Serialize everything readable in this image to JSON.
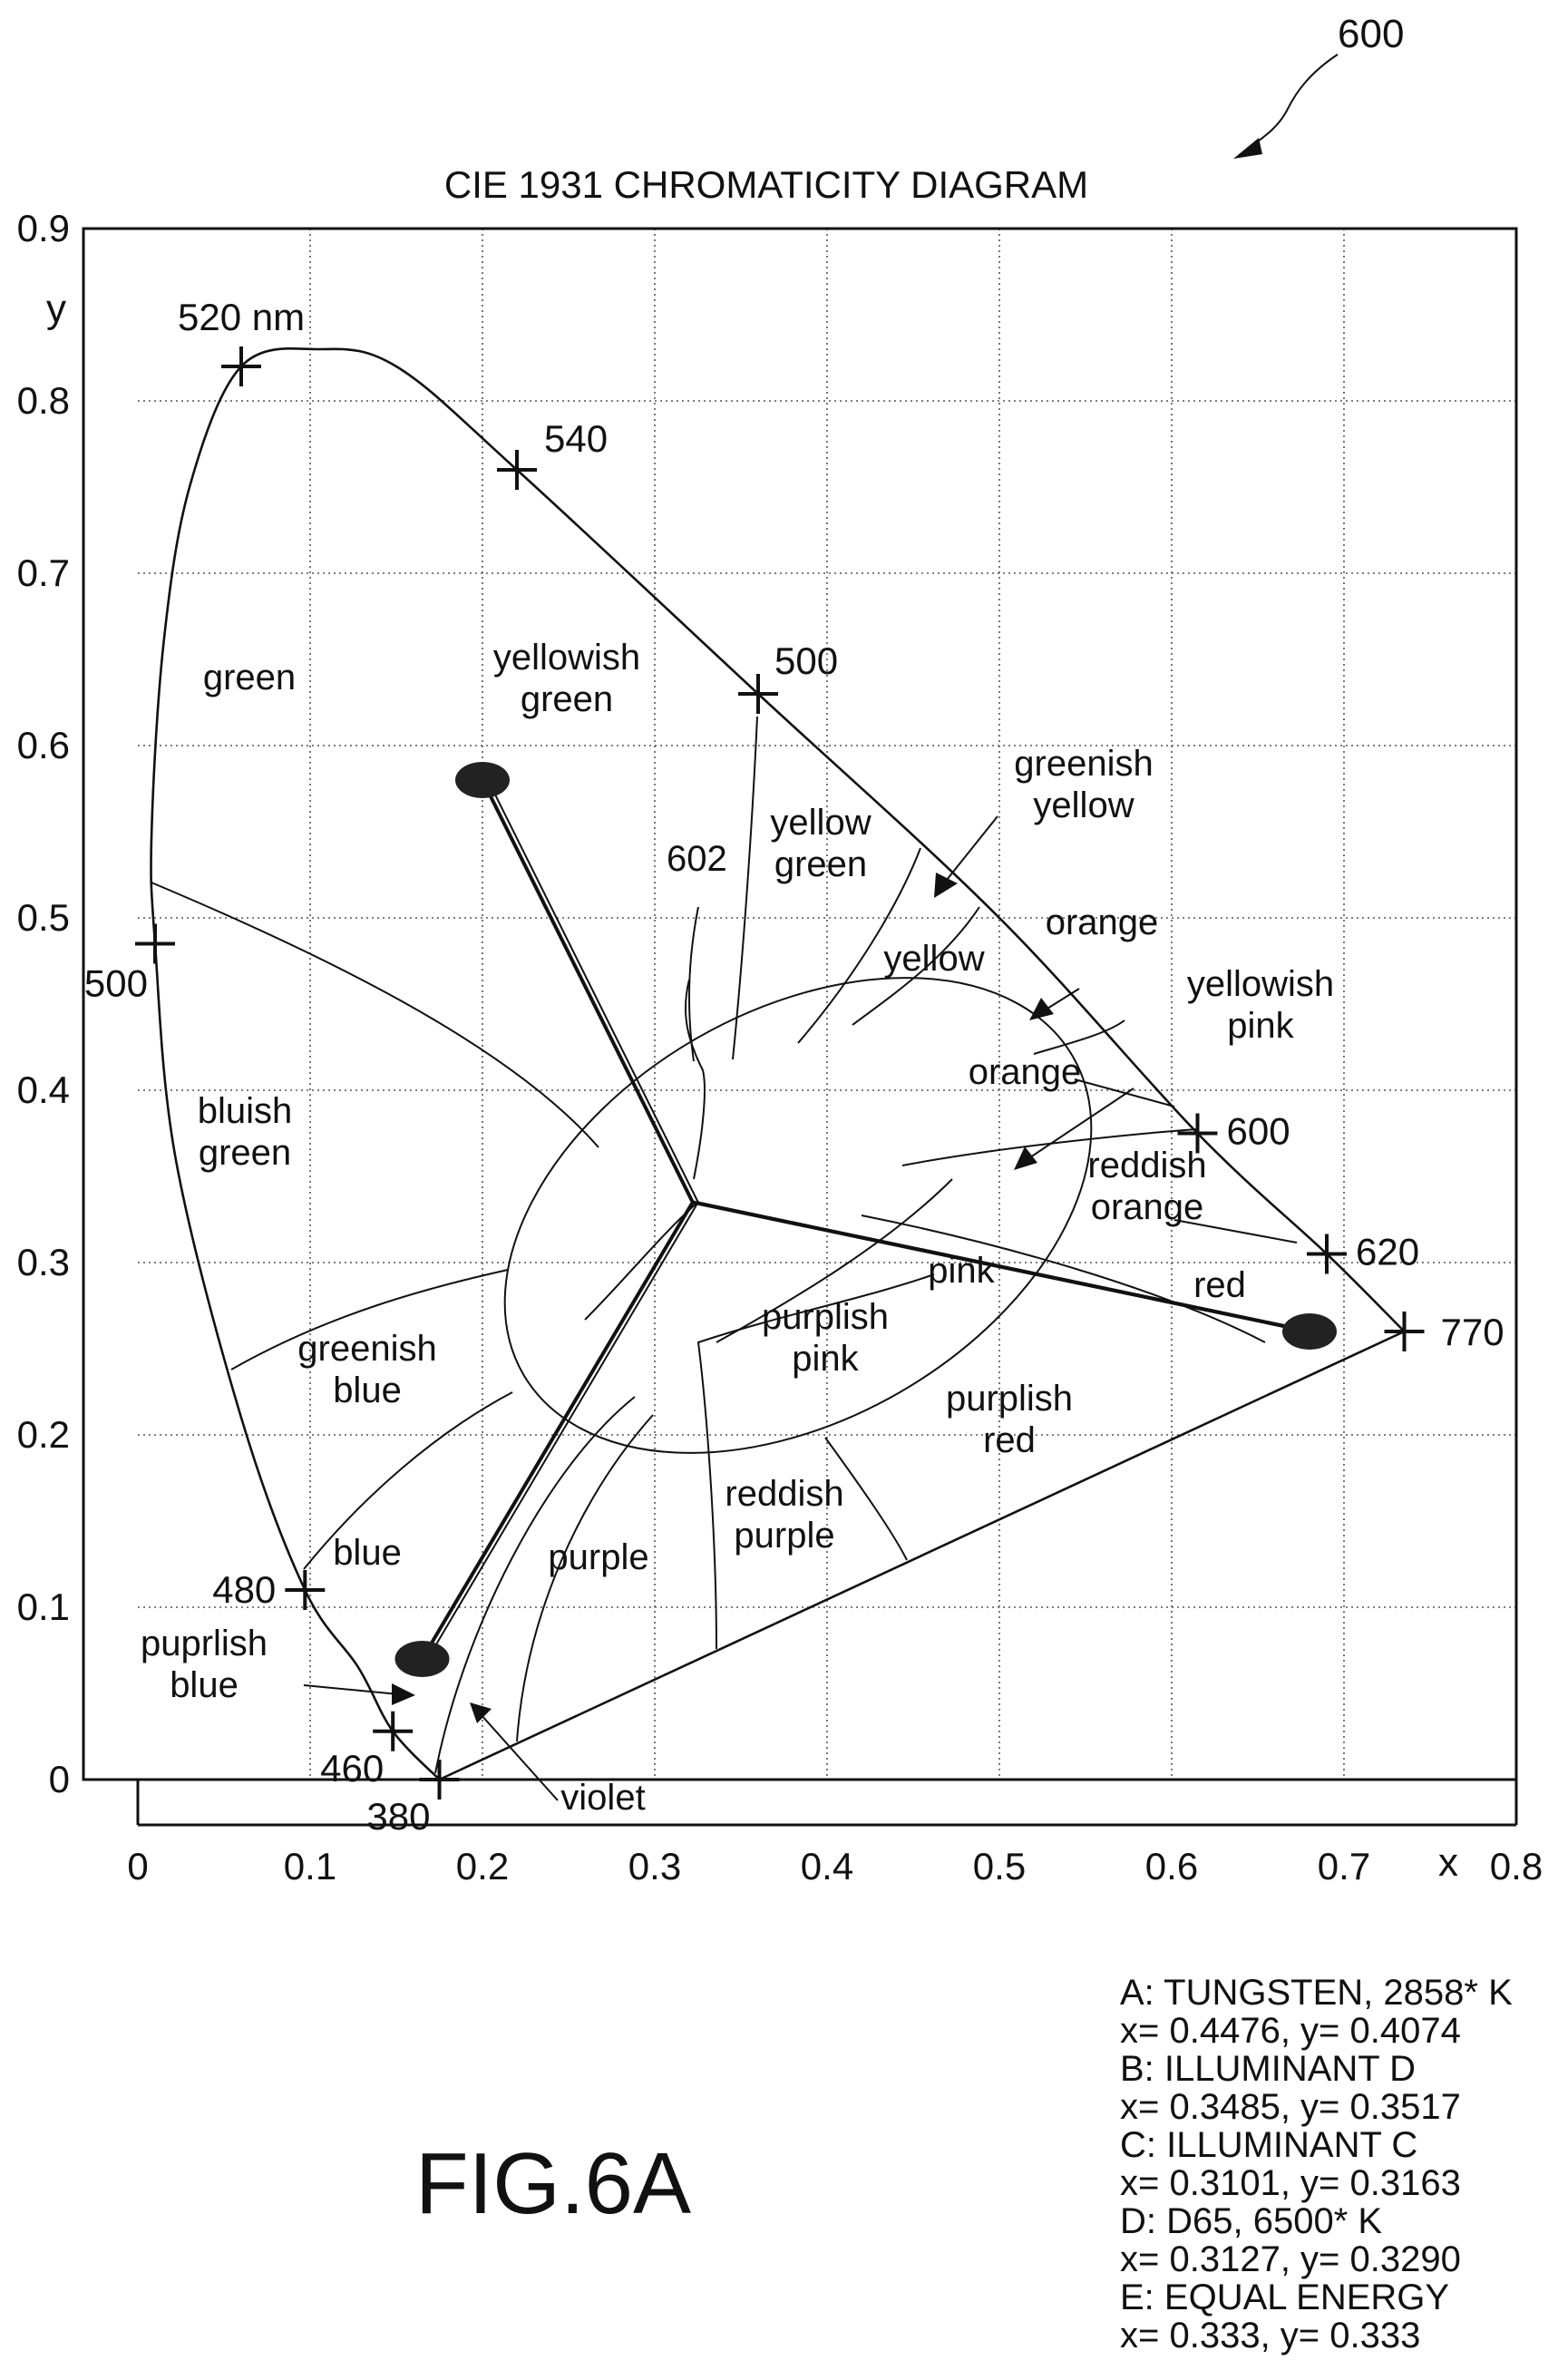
{
  "figure_ref": "600",
  "fig_label": "FIG.6A",
  "chart_data": {
    "type": "diagram",
    "title": "CIE 1931 CHROMATICITY DIAGRAM",
    "xlabel": "x",
    "ylabel": "y",
    "xlim": [
      0,
      0.8
    ],
    "ylim": [
      0,
      0.9
    ],
    "grid": true,
    "x_ticks": [
      "0",
      "0.1",
      "0.2",
      "0.3",
      "0.4",
      "0.5",
      "0.6",
      "0.7",
      "0.8"
    ],
    "y_ticks": [
      "0",
      "0.1",
      "0.2",
      "0.3",
      "0.4",
      "0.5",
      "0.6",
      "0.7",
      "0.8",
      "0.9"
    ],
    "spectral_locus": [
      [
        0.175,
        0.0
      ],
      [
        0.148,
        0.028
      ],
      [
        0.128,
        0.065
      ],
      [
        0.097,
        0.11
      ],
      [
        0.06,
        0.21
      ],
      [
        0.022,
        0.36
      ],
      [
        0.01,
        0.485
      ],
      [
        0.008,
        0.55
      ],
      [
        0.015,
        0.66
      ],
      [
        0.03,
        0.75
      ],
      [
        0.06,
        0.82
      ],
      [
        0.105,
        0.83
      ],
      [
        0.15,
        0.82
      ],
      [
        0.22,
        0.76
      ],
      [
        0.36,
        0.63
      ],
      [
        0.5,
        0.5
      ],
      [
        0.615,
        0.375
      ],
      [
        0.69,
        0.305
      ],
      [
        0.735,
        0.26
      ]
    ],
    "purple_line": [
      [
        0.175,
        0.0
      ],
      [
        0.735,
        0.26
      ]
    ],
    "wavelength_marks": [
      {
        "label": "520 nm",
        "x": 0.06,
        "y": 0.82
      },
      {
        "label": "540",
        "x": 0.22,
        "y": 0.76
      },
      {
        "label": "500",
        "x": 0.36,
        "y": 0.63
      },
      {
        "label": "500",
        "x": 0.01,
        "y": 0.485
      },
      {
        "label": "600",
        "x": 0.615,
        "y": 0.375
      },
      {
        "label": "620",
        "x": 0.69,
        "y": 0.305
      },
      {
        "label": "770",
        "x": 0.735,
        "y": 0.26
      },
      {
        "label": "480",
        "x": 0.097,
        "y": 0.11
      },
      {
        "label": "460",
        "x": 0.148,
        "y": 0.028
      },
      {
        "label": "380",
        "x": 0.175,
        "y": 0.0
      }
    ],
    "gamut_points": [
      {
        "x": 0.2,
        "y": 0.58
      },
      {
        "x": 0.68,
        "y": 0.26
      },
      {
        "x": 0.165,
        "y": 0.07
      }
    ],
    "white_point": {
      "x": 0.322,
      "y": 0.335
    },
    "regions": [
      {
        "lines": [
          "green"
        ]
      },
      {
        "lines": [
          "yellowish",
          "green"
        ]
      },
      {
        "lines": [
          "yellow",
          "green"
        ]
      },
      {
        "lines": [
          "greenish",
          "yellow"
        ]
      },
      {
        "lines": [
          "yellow"
        ]
      },
      {
        "lines": [
          "orange"
        ]
      },
      {
        "lines": [
          "orange"
        ]
      },
      {
        "lines": [
          "yellowish",
          "pink"
        ]
      },
      {
        "lines": [
          "reddish",
          "orange"
        ]
      },
      {
        "lines": [
          "bluish",
          "green"
        ]
      },
      {
        "lines": [
          "pink"
        ]
      },
      {
        "lines": [
          "red"
        ]
      },
      {
        "lines": [
          "purplish",
          "pink"
        ]
      },
      {
        "lines": [
          "greenish",
          "blue"
        ]
      },
      {
        "lines": [
          "purplish",
          "red"
        ]
      },
      {
        "lines": [
          "reddish",
          "purple"
        ]
      },
      {
        "lines": [
          "purple"
        ]
      },
      {
        "lines": [
          "blue"
        ]
      },
      {
        "lines": [
          "puprlish",
          "blue"
        ]
      },
      {
        "lines": [
          "violet"
        ]
      }
    ],
    "callout": "602",
    "legend": [
      "A: TUNGSTEN, 2858* K",
      "x= 0.4476, y= 0.4074",
      "B: ILLUMINANT D",
      "x= 0.3485, y= 0.3517",
      "C: ILLUMINANT C",
      "x= 0.3101, y= 0.3163",
      "D: D65, 6500* K",
      "x= 0.3127, y= 0.3290",
      "E: EQUAL ENERGY",
      "x= 0.333, y= 0.333"
    ]
  }
}
